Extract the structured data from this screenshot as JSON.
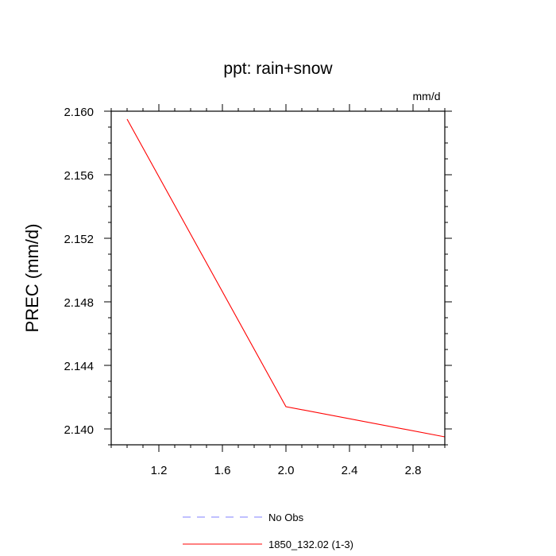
{
  "chart_data": {
    "type": "line",
    "title": "ppt: rain+snow",
    "unit_label": "mm/d",
    "ylabel": "PREC  (mm/d)",
    "xlabel": "",
    "xlim": [
      0.9,
      3.0
    ],
    "ylim": [
      2.139,
      2.16
    ],
    "xticks": [
      1.2,
      1.6,
      2.0,
      2.4,
      2.8
    ],
    "xtick_labels": [
      "1.2",
      "1.6",
      "2.0",
      "2.4",
      "2.8"
    ],
    "yticks": [
      2.14,
      2.144,
      2.148,
      2.152,
      2.156,
      2.16
    ],
    "ytick_labels": [
      "2.140",
      "2.144",
      "2.148",
      "2.152",
      "2.156",
      "2.160"
    ],
    "series": [
      {
        "name": "1850_132.02 (1-3)",
        "color": "#ff0000",
        "dash": "solid",
        "x": [
          1,
          2,
          3
        ],
        "y": [
          2.1595,
          2.1414,
          2.1395
        ]
      }
    ],
    "legend": [
      {
        "label": "No Obs",
        "color": "#8080ff",
        "dash": "dashed"
      },
      {
        "label": "1850_132.02 (1-3)",
        "color": "#ff0000",
        "dash": "solid"
      }
    ],
    "legend_position": "bottom"
  }
}
